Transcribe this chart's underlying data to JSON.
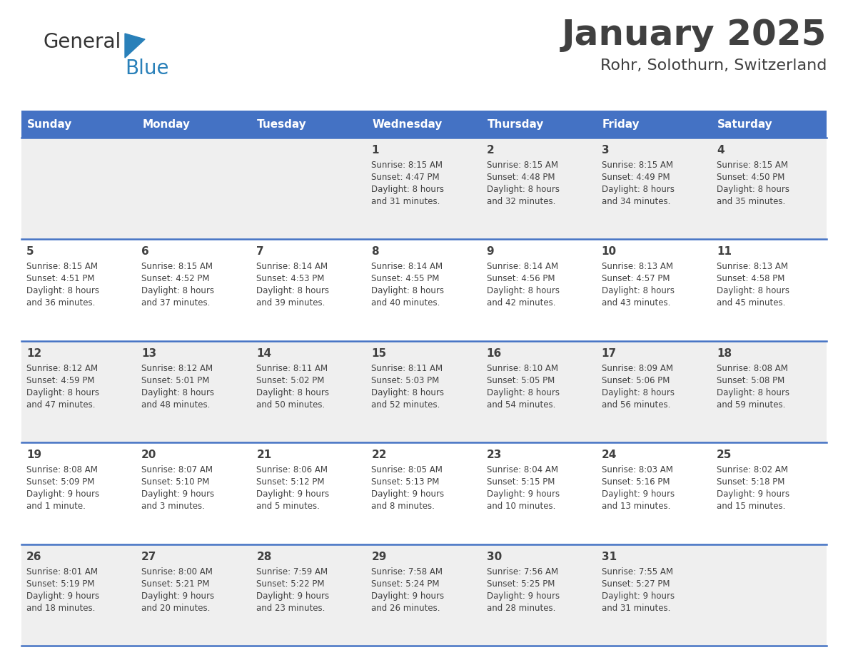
{
  "title": "January 2025",
  "subtitle": "Rohr, Solothurn, Switzerland",
  "header_bg_color": "#4472C4",
  "header_text_color": "#FFFFFF",
  "day_names": [
    "Sunday",
    "Monday",
    "Tuesday",
    "Wednesday",
    "Thursday",
    "Friday",
    "Saturday"
  ],
  "background_color": "#FFFFFF",
  "cell_bg_row0": "#EFEFEF",
  "cell_bg_row1": "#FFFFFF",
  "cell_bg_row2": "#EFEFEF",
  "cell_bg_row3": "#FFFFFF",
  "cell_bg_row4": "#EFEFEF",
  "row_line_color": "#4472C4",
  "logo_black_color": "#333333",
  "logo_blue_color": "#2980B9",
  "text_color": "#404040",
  "calendar": [
    [
      {
        "day": "",
        "sunrise": "",
        "sunset": "",
        "daylight": ""
      },
      {
        "day": "",
        "sunrise": "",
        "sunset": "",
        "daylight": ""
      },
      {
        "day": "",
        "sunrise": "",
        "sunset": "",
        "daylight": ""
      },
      {
        "day": "1",
        "sunrise": "Sunrise: 8:15 AM",
        "sunset": "Sunset: 4:47 PM",
        "daylight": "Daylight: 8 hours\nand 31 minutes."
      },
      {
        "day": "2",
        "sunrise": "Sunrise: 8:15 AM",
        "sunset": "Sunset: 4:48 PM",
        "daylight": "Daylight: 8 hours\nand 32 minutes."
      },
      {
        "day": "3",
        "sunrise": "Sunrise: 8:15 AM",
        "sunset": "Sunset: 4:49 PM",
        "daylight": "Daylight: 8 hours\nand 34 minutes."
      },
      {
        "day": "4",
        "sunrise": "Sunrise: 8:15 AM",
        "sunset": "Sunset: 4:50 PM",
        "daylight": "Daylight: 8 hours\nand 35 minutes."
      }
    ],
    [
      {
        "day": "5",
        "sunrise": "Sunrise: 8:15 AM",
        "sunset": "Sunset: 4:51 PM",
        "daylight": "Daylight: 8 hours\nand 36 minutes."
      },
      {
        "day": "6",
        "sunrise": "Sunrise: 8:15 AM",
        "sunset": "Sunset: 4:52 PM",
        "daylight": "Daylight: 8 hours\nand 37 minutes."
      },
      {
        "day": "7",
        "sunrise": "Sunrise: 8:14 AM",
        "sunset": "Sunset: 4:53 PM",
        "daylight": "Daylight: 8 hours\nand 39 minutes."
      },
      {
        "day": "8",
        "sunrise": "Sunrise: 8:14 AM",
        "sunset": "Sunset: 4:55 PM",
        "daylight": "Daylight: 8 hours\nand 40 minutes."
      },
      {
        "day": "9",
        "sunrise": "Sunrise: 8:14 AM",
        "sunset": "Sunset: 4:56 PM",
        "daylight": "Daylight: 8 hours\nand 42 minutes."
      },
      {
        "day": "10",
        "sunrise": "Sunrise: 8:13 AM",
        "sunset": "Sunset: 4:57 PM",
        "daylight": "Daylight: 8 hours\nand 43 minutes."
      },
      {
        "day": "11",
        "sunrise": "Sunrise: 8:13 AM",
        "sunset": "Sunset: 4:58 PM",
        "daylight": "Daylight: 8 hours\nand 45 minutes."
      }
    ],
    [
      {
        "day": "12",
        "sunrise": "Sunrise: 8:12 AM",
        "sunset": "Sunset: 4:59 PM",
        "daylight": "Daylight: 8 hours\nand 47 minutes."
      },
      {
        "day": "13",
        "sunrise": "Sunrise: 8:12 AM",
        "sunset": "Sunset: 5:01 PM",
        "daylight": "Daylight: 8 hours\nand 48 minutes."
      },
      {
        "day": "14",
        "sunrise": "Sunrise: 8:11 AM",
        "sunset": "Sunset: 5:02 PM",
        "daylight": "Daylight: 8 hours\nand 50 minutes."
      },
      {
        "day": "15",
        "sunrise": "Sunrise: 8:11 AM",
        "sunset": "Sunset: 5:03 PM",
        "daylight": "Daylight: 8 hours\nand 52 minutes."
      },
      {
        "day": "16",
        "sunrise": "Sunrise: 8:10 AM",
        "sunset": "Sunset: 5:05 PM",
        "daylight": "Daylight: 8 hours\nand 54 minutes."
      },
      {
        "day": "17",
        "sunrise": "Sunrise: 8:09 AM",
        "sunset": "Sunset: 5:06 PM",
        "daylight": "Daylight: 8 hours\nand 56 minutes."
      },
      {
        "day": "18",
        "sunrise": "Sunrise: 8:08 AM",
        "sunset": "Sunset: 5:08 PM",
        "daylight": "Daylight: 8 hours\nand 59 minutes."
      }
    ],
    [
      {
        "day": "19",
        "sunrise": "Sunrise: 8:08 AM",
        "sunset": "Sunset: 5:09 PM",
        "daylight": "Daylight: 9 hours\nand 1 minute."
      },
      {
        "day": "20",
        "sunrise": "Sunrise: 8:07 AM",
        "sunset": "Sunset: 5:10 PM",
        "daylight": "Daylight: 9 hours\nand 3 minutes."
      },
      {
        "day": "21",
        "sunrise": "Sunrise: 8:06 AM",
        "sunset": "Sunset: 5:12 PM",
        "daylight": "Daylight: 9 hours\nand 5 minutes."
      },
      {
        "day": "22",
        "sunrise": "Sunrise: 8:05 AM",
        "sunset": "Sunset: 5:13 PM",
        "daylight": "Daylight: 9 hours\nand 8 minutes."
      },
      {
        "day": "23",
        "sunrise": "Sunrise: 8:04 AM",
        "sunset": "Sunset: 5:15 PM",
        "daylight": "Daylight: 9 hours\nand 10 minutes."
      },
      {
        "day": "24",
        "sunrise": "Sunrise: 8:03 AM",
        "sunset": "Sunset: 5:16 PM",
        "daylight": "Daylight: 9 hours\nand 13 minutes."
      },
      {
        "day": "25",
        "sunrise": "Sunrise: 8:02 AM",
        "sunset": "Sunset: 5:18 PM",
        "daylight": "Daylight: 9 hours\nand 15 minutes."
      }
    ],
    [
      {
        "day": "26",
        "sunrise": "Sunrise: 8:01 AM",
        "sunset": "Sunset: 5:19 PM",
        "daylight": "Daylight: 9 hours\nand 18 minutes."
      },
      {
        "day": "27",
        "sunrise": "Sunrise: 8:00 AM",
        "sunset": "Sunset: 5:21 PM",
        "daylight": "Daylight: 9 hours\nand 20 minutes."
      },
      {
        "day": "28",
        "sunrise": "Sunrise: 7:59 AM",
        "sunset": "Sunset: 5:22 PM",
        "daylight": "Daylight: 9 hours\nand 23 minutes."
      },
      {
        "day": "29",
        "sunrise": "Sunrise: 7:58 AM",
        "sunset": "Sunset: 5:24 PM",
        "daylight": "Daylight: 9 hours\nand 26 minutes."
      },
      {
        "day": "30",
        "sunrise": "Sunrise: 7:56 AM",
        "sunset": "Sunset: 5:25 PM",
        "daylight": "Daylight: 9 hours\nand 28 minutes."
      },
      {
        "day": "31",
        "sunrise": "Sunrise: 7:55 AM",
        "sunset": "Sunset: 5:27 PM",
        "daylight": "Daylight: 9 hours\nand 31 minutes."
      },
      {
        "day": "",
        "sunrise": "",
        "sunset": "",
        "daylight": ""
      }
    ]
  ],
  "row_bg_colors": [
    "#EFEFEF",
    "#FFFFFF",
    "#EFEFEF",
    "#FFFFFF",
    "#EFEFEF"
  ]
}
